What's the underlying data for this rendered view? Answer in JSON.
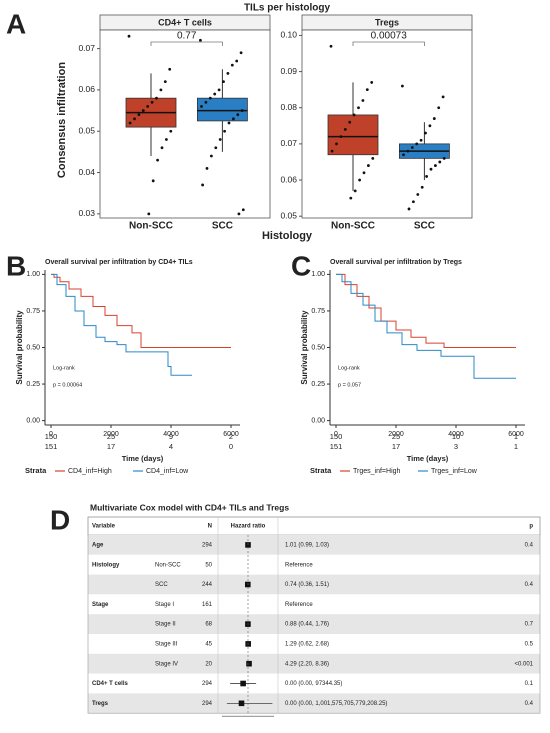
{
  "chart_data": [
    {
      "type": "box",
      "panel_label": "A",
      "title": "TILs per histology",
      "ylabel": "Consensus infiltration",
      "xlabel": "Histology",
      "categories": [
        "Non-SCC",
        "SCC"
      ],
      "colors": [
        "#c0412a",
        "#2a7fc4"
      ],
      "facets": [
        {
          "strip": "CD4+ T cells",
          "p_label": "0.77",
          "ylim": [
            0.029,
            0.0745
          ],
          "yticks": [
            0.03,
            0.04,
            0.05,
            0.06,
            0.07
          ],
          "boxes": [
            {
              "q1": 0.051,
              "median": 0.0545,
              "q3": 0.058,
              "whisker_low": 0.044,
              "whisker_high": 0.064,
              "points": [
                0.073,
                0.065,
                0.062,
                0.06,
                0.058,
                0.057,
                0.056,
                0.055,
                0.054,
                0.053,
                0.052,
                0.05,
                0.048,
                0.046,
                0.043,
                0.038,
                0.03
              ]
            },
            {
              "q1": 0.0525,
              "median": 0.055,
              "q3": 0.058,
              "whisker_low": 0.045,
              "whisker_high": 0.065,
              "points": [
                0.072,
                0.069,
                0.067,
                0.066,
                0.064,
                0.062,
                0.06,
                0.059,
                0.058,
                0.057,
                0.056,
                0.055,
                0.054,
                0.053,
                0.052,
                0.05,
                0.048,
                0.046,
                0.044,
                0.041,
                0.037,
                0.031,
                0.03
              ]
            }
          ]
        },
        {
          "strip": "Tregs",
          "p_label": "0.00073",
          "ylim": [
            0.0495,
            0.1015
          ],
          "yticks": [
            0.05,
            0.06,
            0.07,
            0.08,
            0.09,
            {
              "value": 0.1,
              "label": "0.10"
            }
          ],
          "boxes": [
            {
              "q1": 0.067,
              "median": 0.072,
              "q3": 0.078,
              "whisker_low": 0.057,
              "whisker_high": 0.087,
              "points": [
                0.097,
                0.087,
                0.085,
                0.082,
                0.08,
                0.078,
                0.076,
                0.074,
                0.072,
                0.07,
                0.068,
                0.066,
                0.064,
                0.062,
                0.06,
                0.057,
                0.055
              ]
            },
            {
              "q1": 0.066,
              "median": 0.068,
              "q3": 0.07,
              "whisker_low": 0.06,
              "whisker_high": 0.076,
              "points": [
                0.086,
                0.083,
                0.08,
                0.077,
                0.075,
                0.073,
                0.071,
                0.07,
                0.069,
                0.068,
                0.067,
                0.066,
                0.065,
                0.064,
                0.063,
                0.061,
                0.058,
                0.056,
                0.054,
                0.052
              ]
            }
          ]
        }
      ]
    },
    {
      "type": "km",
      "panel_label": "B",
      "title": "Overall survival per infiltration by CD4+ TILs",
      "xlabel": "Time (days)",
      "ylabel": "Survival probability",
      "annotations": [
        "Log-rank",
        "p = 0.00064"
      ],
      "legend_title": "Strata",
      "xlim": [
        -200,
        6300
      ],
      "xticks": [
        0,
        2000,
        4000,
        6000
      ],
      "ylim": [
        -0.03,
        1.03
      ],
      "yticks": [
        {
          "value": 0,
          "label": "0.00"
        },
        {
          "value": 0.25,
          "label": "0.25"
        },
        {
          "value": 0.5,
          "label": "0.50"
        },
        {
          "value": 0.75,
          "label": "0.75"
        },
        {
          "value": 1,
          "label": "1.00"
        }
      ],
      "series": [
        {
          "name": "CD4_inf=High",
          "color": "#d9412f",
          "x": [
            0,
            100,
            300,
            600,
            1000,
            1400,
            1800,
            2200,
            2700,
            3000,
            6000
          ],
          "values": [
            1,
            0.98,
            0.95,
            0.9,
            0.85,
            0.78,
            0.72,
            0.65,
            0.6,
            0.5,
            0.5
          ],
          "at_risk": [
            150,
            25,
            9,
            2
          ]
        },
        {
          "name": "CD4_inf=Low",
          "color": "#2a8ac8",
          "x": [
            0,
            200,
            500,
            800,
            1100,
            1500,
            1800,
            2200,
            2500,
            3900,
            4000,
            4700
          ],
          "values": [
            1,
            0.93,
            0.85,
            0.75,
            0.65,
            0.57,
            0.54,
            0.52,
            0.47,
            0.37,
            0.31,
            0.31
          ],
          "at_risk": [
            151,
            17,
            4,
            0
          ]
        }
      ]
    },
    {
      "type": "km",
      "panel_label": "C",
      "title": "Overall survival per infiltration by Tregs",
      "xlabel": "Time (days)",
      "ylabel": "Survival probability",
      "annotations": [
        "Log-rank",
        "p = 0.057"
      ],
      "legend_title": "Strata",
      "xlim": [
        -200,
        6300
      ],
      "xticks": [
        0,
        2000,
        4000,
        6000
      ],
      "ylim": [
        -0.03,
        1.03
      ],
      "yticks": [
        {
          "value": 0,
          "label": "0.00"
        },
        {
          "value": 0.25,
          "label": "0.25"
        },
        {
          "value": 0.5,
          "label": "0.50"
        },
        {
          "value": 0.75,
          "label": "0.75"
        },
        {
          "value": 1,
          "label": "1.00"
        }
      ],
      "series": [
        {
          "name": "Trges_inf=High",
          "color": "#d9412f",
          "x": [
            0,
            300,
            700,
            1100,
            1500,
            2000,
            2500,
            3000,
            3600,
            6000
          ],
          "values": [
            1,
            0.93,
            0.85,
            0.77,
            0.68,
            0.62,
            0.57,
            0.53,
            0.5,
            0.5
          ],
          "at_risk": [
            150,
            25,
            10,
            1
          ]
        },
        {
          "name": "Trges_inf=Low",
          "color": "#2a8ac8",
          "x": [
            0,
            200,
            500,
            900,
            1300,
            1700,
            2200,
            2700,
            3500,
            4600,
            6000
          ],
          "values": [
            1,
            0.95,
            0.87,
            0.79,
            0.68,
            0.6,
            0.52,
            0.48,
            0.44,
            0.29,
            0.29
          ],
          "at_risk": [
            151,
            17,
            3,
            1
          ]
        }
      ]
    },
    {
      "type": "forest",
      "panel_label": "D",
      "title": "Multivariate Cox model with CD4+ TILs and Tregs",
      "columns": [
        "Variable",
        "N",
        "Hazard ratio",
        "p"
      ],
      "log_scale": true,
      "xlim": [
        1e-16,
        1e+16
      ],
      "reference": 1,
      "rows": [
        {
          "variable": "Age",
          "level": null,
          "n": 294,
          "estimate": 1.01,
          "lower": 0.99,
          "upper": 1.03,
          "hr_label": "1.01 (0.99, 1.03)",
          "p": 0.4
        },
        {
          "variable": "Histology",
          "level": "Non-SCC",
          "n": 50,
          "estimate": null,
          "lower": null,
          "upper": null,
          "hr_label": "Reference",
          "p": null
        },
        {
          "variable": null,
          "level": "SCC",
          "n": 244,
          "estimate": 0.74,
          "lower": 0.36,
          "upper": 1.51,
          "hr_label": "0.74 (0.36, 1.51)",
          "p": 0.4
        },
        {
          "variable": "Stage",
          "level": "Stage I",
          "n": 161,
          "estimate": null,
          "lower": null,
          "upper": null,
          "hr_label": "Reference",
          "p": null
        },
        {
          "variable": null,
          "level": "Stage II",
          "n": 68,
          "estimate": 0.88,
          "lower": 0.44,
          "upper": 1.76,
          "hr_label": "0.88 (0.44, 1.76)",
          "p": 0.7
        },
        {
          "variable": null,
          "level": "Stage III",
          "n": 45,
          "estimate": 1.29,
          "lower": 0.62,
          "upper": 2.68,
          "hr_label": "1.29 (0.62, 2.68)",
          "p": 0.5
        },
        {
          "variable": null,
          "level": "Stage IV",
          "n": 20,
          "estimate": 4.29,
          "lower": 2.2,
          "upper": 8.36,
          "hr_label": "4.29 (2.20, 8.36)",
          "p": "<0.001"
        },
        {
          "variable": "CD4+ T cells",
          "level": null,
          "n": 294,
          "estimate": 0.001,
          "lower": 1e-11,
          "upper": 97344.35,
          "hr_label": "0.00 (0.00, 97344.35)",
          "p": 0.1
        },
        {
          "variable": "Tregs",
          "level": null,
          "n": 294,
          "estimate": 0.0001,
          "lower": 1e-13,
          "upper": 1001575705779208.2,
          "hr_label": "0.00 (0.00, 1,001,575,705,779,208.25)",
          "p": 0.4
        }
      ]
    }
  ]
}
